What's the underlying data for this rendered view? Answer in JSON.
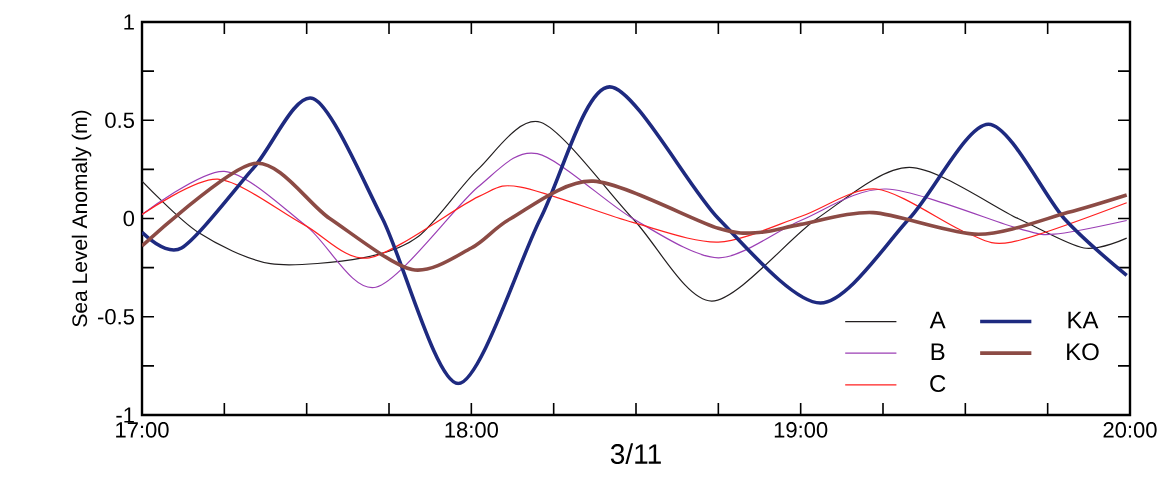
{
  "chart_data": {
    "type": "line",
    "xlabel": "3/11",
    "ylabel": "Sea Level Anomaly (m)",
    "xlim": [
      17,
      20
    ],
    "ylim": [
      -1,
      1
    ],
    "xticks": [
      {
        "value": 17,
        "label": "17:00"
      },
      {
        "value": 17.25,
        "label": null
      },
      {
        "value": 17.5,
        "label": null
      },
      {
        "value": 17.75,
        "label": null
      },
      {
        "value": 18,
        "label": "18:00"
      },
      {
        "value": 18.25,
        "label": null
      },
      {
        "value": 18.5,
        "label": null
      },
      {
        "value": 18.75,
        "label": null
      },
      {
        "value": 19,
        "label": "19:00"
      },
      {
        "value": 19.25,
        "label": null
      },
      {
        "value": 19.5,
        "label": null
      },
      {
        "value": 19.75,
        "label": null
      },
      {
        "value": 20,
        "label": "20:00"
      }
    ],
    "yticks": [
      -1,
      {
        "value": -0.75,
        "label": null
      },
      -0.5,
      {
        "value": -0.25,
        "label": null
      },
      0,
      {
        "value": 0.25,
        "label": null
      },
      0.5,
      {
        "value": 0.75,
        "label": null
      },
      1
    ],
    "legend": "bottom right",
    "line_style": "solid",
    "series": [
      {
        "name": "A",
        "color": "#231f20",
        "x": [
          17,
          17.17,
          17.39,
          17.67,
          17.84,
          18.02,
          18.21,
          18.49,
          18.73,
          19.05,
          19.33,
          19.66,
          19.86,
          19.99
        ],
        "values": [
          0.19,
          -0.07,
          -0.23,
          -0.2,
          -0.09,
          0.25,
          0.49,
          0,
          -0.42,
          0,
          0.26,
          0,
          -0.15,
          -0.1
        ]
      },
      {
        "name": "B",
        "color": "#9b3fb5",
        "x": [
          17,
          17.25,
          17.5,
          17.71,
          18.02,
          18.2,
          18.49,
          18.75,
          19,
          19.26,
          19.66,
          19.77,
          19.99
        ],
        "values": [
          0.02,
          0.24,
          -0.04,
          -0.35,
          0.16,
          0.33,
          0,
          -0.2,
          -0.01,
          0.15,
          -0.05,
          -0.08,
          -0.01
        ]
      },
      {
        "name": "C",
        "color": "#ff2020",
        "x": [
          17,
          17.23,
          17.49,
          17.69,
          18.02,
          18.15,
          18.49,
          18.75,
          19,
          19.23,
          19.5,
          19.64,
          19.99
        ],
        "values": [
          0.02,
          0.2,
          -0.03,
          -0.2,
          0.11,
          0.16,
          -0.02,
          -0.12,
          0.01,
          0.15,
          -0.07,
          -0.12,
          0.08
        ]
      },
      {
        "name": "KA",
        "color": "#1e2a80",
        "x": [
          17,
          17.12,
          17.34,
          17.52,
          17.73,
          17.96,
          18.21,
          18.42,
          18.75,
          19.06,
          19.33,
          19.57,
          19.8,
          19.99
        ],
        "values": [
          -0.07,
          -0.15,
          0.26,
          0.61,
          0,
          -0.84,
          0,
          0.67,
          0,
          -0.43,
          0,
          0.48,
          0,
          -0.29
        ]
      },
      {
        "name": "KO",
        "color": "#8c4b45",
        "x": [
          17,
          17.34,
          17.57,
          17.82,
          18,
          18.12,
          18.37,
          18.75,
          18.88,
          19,
          19.22,
          19.54,
          19.81,
          19.99
        ],
        "values": [
          -0.14,
          0.28,
          0,
          -0.26,
          -0.15,
          0,
          0.19,
          -0.05,
          -0.07,
          -0.03,
          0.03,
          -0.08,
          0.03,
          0.12
        ]
      }
    ]
  }
}
